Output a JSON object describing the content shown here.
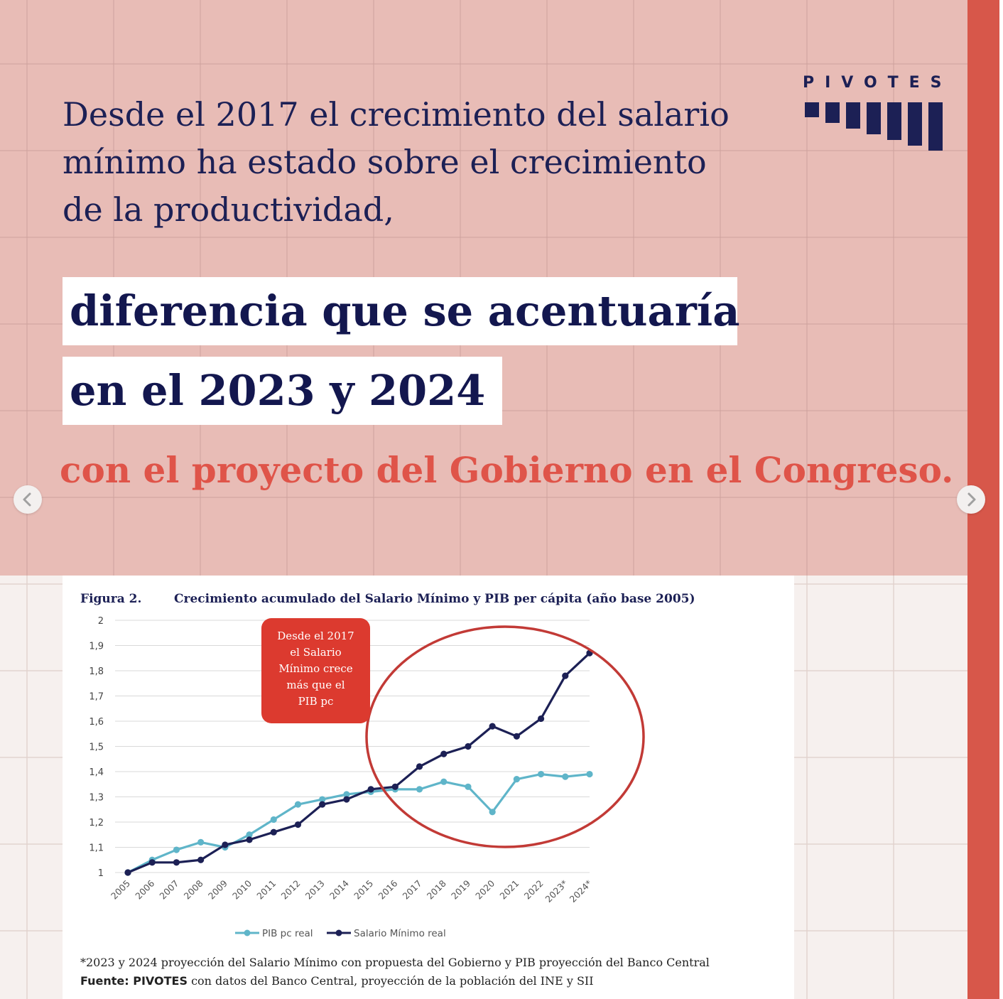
{
  "brand": {
    "name": "PIVOTES",
    "color": "#1c2055"
  },
  "intro_text": "Desde el 2017 el crecimiento del salario mínimo ha estado sobre el crecimiento de la productividad,",
  "highlight_line1": "diferencia que se acentuaría",
  "highlight_line2": "en el 2023 y 2024",
  "closing_text": "con el proyecto del Gobierno en el Congreso.",
  "colors": {
    "background": "#e8bcb6",
    "accent": "#d7574a",
    "closing": "#df5449",
    "navy": "#1c2055",
    "teal": "#5fb5c9",
    "callout": "#dc3a2f",
    "ellipse": "#c23a36"
  },
  "navigation": {
    "prev_icon": "chevron-left-icon",
    "next_icon": "chevron-right-icon"
  },
  "figure": {
    "label": "Figura 2.",
    "title": "Crecimiento acumulado del Salario Mínimo y PIB per cápita (año base 2005)",
    "callout": [
      "Desde el 2017",
      "el Salario",
      "Mínimo crece",
      "más que el",
      "PIB pc"
    ],
    "footnote": "*2023 y 2024 proyección del Salario Mínimo con propuesta del Gobierno y PIB proyección del Banco Central",
    "source_label": "Fuente: PIVOTES",
    "source_text": " con datos del Banco Central, proyección de la población del INE y SII"
  },
  "chart_data": {
    "type": "line",
    "title": "Crecimiento acumulado del Salario Mínimo y PIB per cápita (año base 2005)",
    "xlabel": "",
    "ylabel": "",
    "categories": [
      "2005",
      "2006",
      "2007",
      "2008",
      "2009",
      "2010",
      "2011",
      "2012",
      "2013",
      "2014",
      "2015",
      "2016",
      "2017",
      "2018",
      "2019",
      "2020",
      "2021",
      "2022",
      "2023*",
      "2024*"
    ],
    "yticks": [
      "1",
      "1,1",
      "1,2",
      "1,3",
      "1,4",
      "1,5",
      "1,6",
      "1,7",
      "1,8",
      "1,9",
      "2"
    ],
    "ylim": [
      1,
      2
    ],
    "grid": true,
    "legend_position": "bottom",
    "series": [
      {
        "name": "PIB pc real",
        "color": "#5fb5c9",
        "values": [
          1.0,
          1.05,
          1.09,
          1.12,
          1.1,
          1.15,
          1.21,
          1.27,
          1.29,
          1.31,
          1.32,
          1.33,
          1.33,
          1.36,
          1.34,
          1.24,
          1.37,
          1.39,
          1.38,
          1.39
        ]
      },
      {
        "name": "Salario Mínimo real",
        "color": "#1c2055",
        "values": [
          1.0,
          1.04,
          1.04,
          1.05,
          1.11,
          1.13,
          1.16,
          1.19,
          1.27,
          1.29,
          1.33,
          1.34,
          1.42,
          1.47,
          1.5,
          1.58,
          1.54,
          1.61,
          1.78,
          1.87
        ]
      }
    ],
    "annotation": "Desde el 2017 el Salario Mínimo crece más que el PIB pc"
  }
}
